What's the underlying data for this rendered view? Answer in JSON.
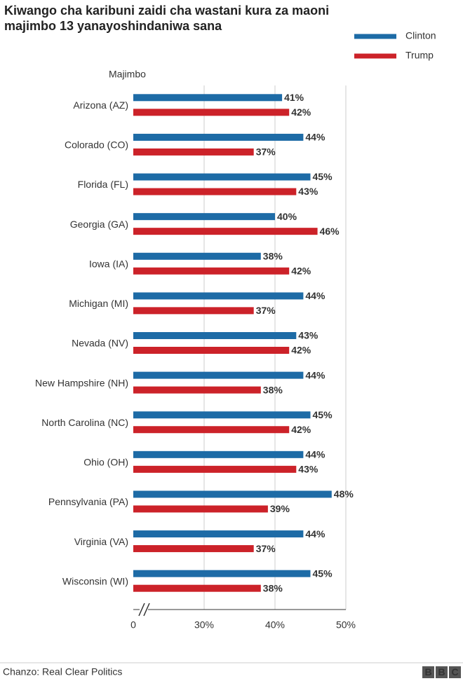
{
  "chart_data": {
    "type": "bar",
    "orientation": "horizontal",
    "title": "Kiwango cha karibuni zaidi cha wastani kura za maoni",
    "subtitle": "majimbo 13 yanayoshindaniwa sana",
    "y_label": "Majimbo",
    "categories": [
      "Arizona (AZ)",
      "Colorado (CO)",
      "Florida (FL)",
      "Georgia (GA)",
      "Iowa (IA)",
      "Michigan (MI)",
      "Nevada (NV)",
      "New Hampshire (NH)",
      "North Carolina (NC)",
      "Ohio (OH)",
      "Pennsylvania (PA)",
      "Virginia (VA)",
      "Wisconsin (WI)"
    ],
    "series": [
      {
        "name": "Clinton",
        "color": "#1d6ba6",
        "values": [
          41,
          44,
          45,
          40,
          38,
          44,
          43,
          44,
          45,
          44,
          48,
          44,
          45
        ],
        "value_labels": [
          "41%",
          "44%",
          "45%",
          "40%",
          "38%",
          "44%",
          "43%",
          "44%",
          "45%",
          "44%",
          "48%",
          "44%",
          "45%"
        ]
      },
      {
        "name": "Trump",
        "color": "#cc2229",
        "values": [
          42,
          37,
          43,
          46,
          42,
          37,
          42,
          38,
          42,
          43,
          39,
          37,
          38
        ],
        "value_labels": [
          "42%",
          "37%",
          "43%",
          "46%",
          "42%",
          "37%",
          "42%",
          "38%",
          "42%",
          "43%",
          "39%",
          "37%",
          "38%"
        ]
      }
    ],
    "xlim": [
      0,
      50
    ],
    "xticks": [
      0,
      {
        "value": 30,
        "label": "30%"
      },
      {
        "value": 40,
        "label": "40%"
      },
      {
        "value": 50,
        "label": "50%"
      }
    ],
    "axis_break": true,
    "grid": true,
    "legend": "top-right"
  },
  "footer": {
    "source": "Chanzo: Real Clear Politics",
    "logo": [
      "B",
      "B",
      "C"
    ]
  }
}
